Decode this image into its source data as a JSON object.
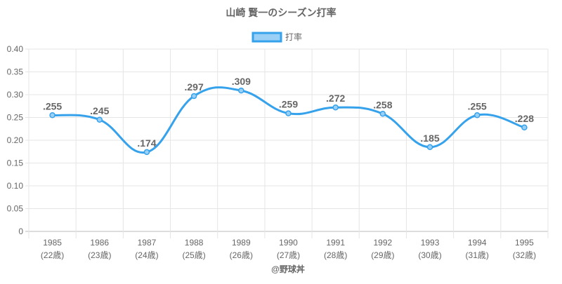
{
  "chart_data": {
    "type": "line",
    "title": "山崎 賢一のシーズン打率",
    "legend": [
      "打率"
    ],
    "legend_position": "top",
    "categories": [
      "1985",
      "1986",
      "1987",
      "1988",
      "1989",
      "1990",
      "1991",
      "1992",
      "1993",
      "1994",
      "1995"
    ],
    "sublabels": [
      "(22歳)",
      "(23歳)",
      "(24歳)",
      "(25歳)",
      "(26歳)",
      "(27歳)",
      "(28歳)",
      "(29歳)",
      "(30歳)",
      "(31歳)",
      "(32歳)"
    ],
    "values": [
      0.255,
      0.245,
      0.174,
      0.297,
      0.309,
      0.259,
      0.272,
      0.258,
      0.185,
      0.255,
      0.228
    ],
    "data_labels": [
      ".255",
      ".245",
      ".174",
      ".297",
      ".309",
      ".259",
      ".272",
      ".258",
      ".185",
      ".255",
      ".228"
    ],
    "ylim": [
      0,
      0.4
    ],
    "yticks": [
      "0",
      "0.05",
      "0.10",
      "0.15",
      "0.20",
      "0.25",
      "0.30",
      "0.35",
      "0.40"
    ],
    "grid": true,
    "xlabel": "",
    "ylabel": "",
    "line_color": "#36a2eb",
    "fill_color": "#9ad0f5"
  },
  "footer": "@野球丼"
}
